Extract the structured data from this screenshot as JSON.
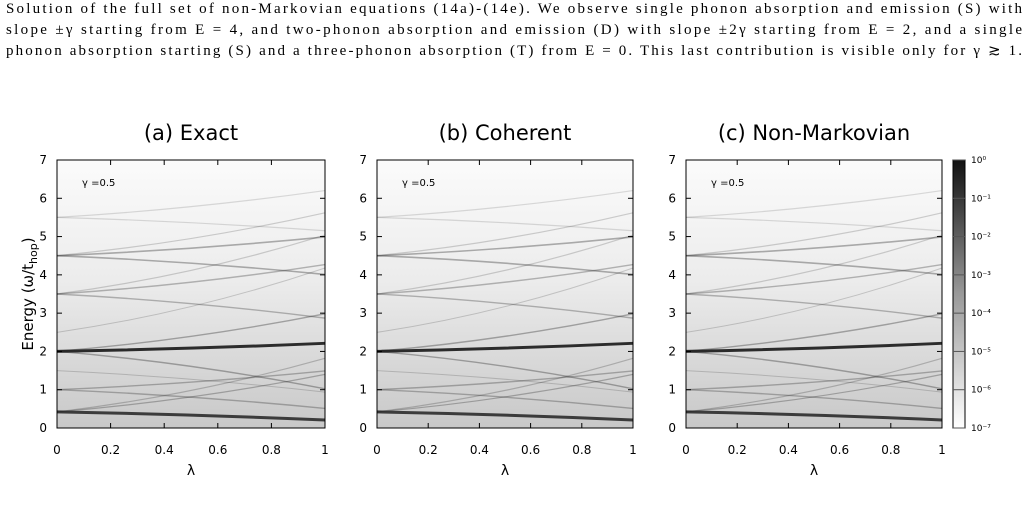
{
  "caption": [
    "Solution of the full set of non-Markovian equations (14a)-(14e). We observe single phonon absorption and emission (S) with",
    "slope ±γ starting from E = 4, and two-phonon absorption and emission (D) with slope ±2γ starting from E = 2, and a single",
    "phonon absorption starting (S) and a three-phonon absorption (T) from E = 0. This last contribution is visible only for γ ≳ 1."
  ],
  "chart_data": [
    {
      "type": "heatmap",
      "title": "(a) Exact",
      "xlabel": "λ",
      "ylabel": "Energy (ω/t",
      "ylabel_sub": "hop",
      "ylabel_end": ")",
      "annotation": "γ =0.5",
      "xlim": [
        0,
        1
      ],
      "xticks": [
        0,
        0.2,
        0.4,
        0.6,
        0.8,
        1
      ],
      "ylim": [
        0,
        7
      ],
      "yticks": [
        0,
        1,
        2,
        3,
        4,
        5,
        6,
        7
      ]
    },
    {
      "type": "heatmap",
      "title": "(b) Coherent",
      "xlabel": "λ",
      "annotation": "γ =0.5",
      "xlim": [
        0,
        1
      ],
      "xticks": [
        0,
        0.2,
        0.4,
        0.6,
        0.8,
        1
      ],
      "ylim": [
        0,
        7
      ],
      "yticks": [
        0,
        1,
        2,
        3,
        4,
        5,
        6,
        7
      ]
    },
    {
      "type": "heatmap",
      "title": "(c) Non-Markovian",
      "xlabel": "λ",
      "annotation": "γ =0.5",
      "xlim": [
        0,
        1
      ],
      "xticks": [
        0,
        0.2,
        0.4,
        0.6,
        0.8,
        1
      ],
      "ylim": [
        0,
        7
      ],
      "yticks": [
        0,
        1,
        2,
        3,
        4,
        5,
        6,
        7
      ],
      "colorbar": {
        "log_scale": true,
        "lim": [
          -7,
          0
        ],
        "ticks": [
          {
            "value": 0,
            "label": "10⁰"
          },
          {
            "value": -1,
            "label": "10⁻¹"
          },
          {
            "value": -2,
            "label": "10⁻²"
          },
          {
            "value": -3,
            "label": "10⁻³"
          },
          {
            "value": -4,
            "label": "10⁻⁴"
          },
          {
            "value": -5,
            "label": "10⁻⁵"
          },
          {
            "value": -6,
            "label": "10⁻⁶"
          },
          {
            "value": -7,
            "label": "10⁻⁷"
          }
        ]
      }
    }
  ]
}
